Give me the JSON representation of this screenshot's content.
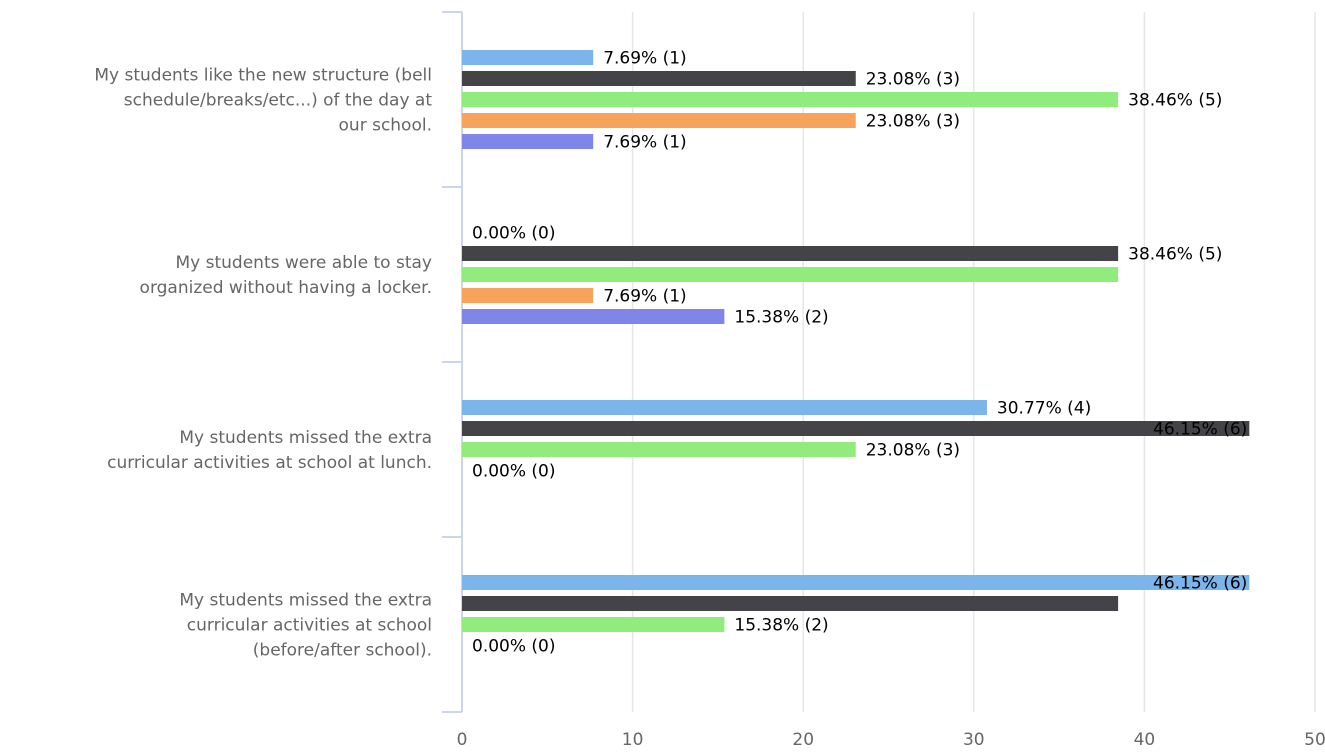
{
  "chart_data": {
    "type": "bar",
    "orientation": "horizontal",
    "categories": [
      "My students like the new structure (bell schedule/breaks/etc...) of the day at our school.",
      "My students were able to stay organized without having a locker.",
      "My students missed the extra curricular activities at school at lunch.",
      "My students missed the extra curricular activities at school (before/after school)."
    ],
    "category_lines": [
      [
        "My students like the new structure (bell",
        "schedule/breaks/etc...) of the day at",
        "our school."
      ],
      [
        "My students were able to stay",
        "organized without having a locker."
      ],
      [
        "My students missed the extra",
        "curricular activities at school at lunch."
      ],
      [
        "My students missed the extra",
        "curricular activities at school",
        "(before/after school)."
      ]
    ],
    "series": [
      {
        "color": "#7cb5ec",
        "values": [
          7.69,
          0,
          30.77,
          46.15
        ],
        "labels": [
          "7.69% (1)",
          "0.00% (0)",
          "30.77% (4)",
          "46.15% (6)"
        ]
      },
      {
        "color": "#434348",
        "values": [
          23.08,
          38.46,
          46.15,
          38.46
        ],
        "labels": [
          "23.08% (3)",
          "38.46% (5)",
          "46.15% (6)",
          null
        ]
      },
      {
        "color": "#90ed7d",
        "values": [
          38.46,
          38.46,
          23.08,
          15.38
        ],
        "labels": [
          "38.46% (5)",
          null,
          "23.08% (3)",
          "15.38% (2)"
        ]
      },
      {
        "color": "#f7a35c",
        "values": [
          23.08,
          7.69,
          0,
          0
        ],
        "labels": [
          "23.08% (3)",
          "7.69% (1)",
          "0.00% (0)",
          "0.00% (0)"
        ]
      },
      {
        "color": "#8085e9",
        "values": [
          7.69,
          15.38,
          null,
          null
        ],
        "labels": [
          "7.69% (1)",
          "15.38% (2)",
          null,
          null
        ]
      }
    ],
    "xlim": [
      0,
      50
    ],
    "xticks": [
      0,
      10,
      20,
      30,
      40,
      50
    ],
    "grid": true,
    "title": "",
    "xlabel": "",
    "ylabel": ""
  }
}
